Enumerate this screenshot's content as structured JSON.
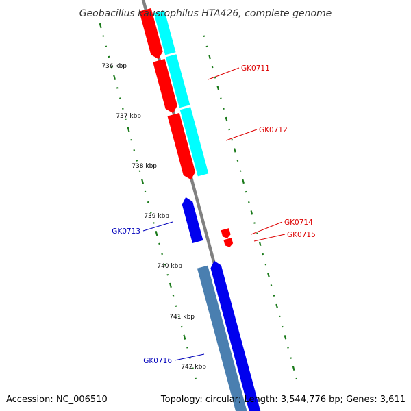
{
  "title": "Geobacillus kaustophilus HTA426, complete genome",
  "footer": {
    "accession": "Accession: NC_006510",
    "topology": "Topology: circular; Length: 3,544,776 bp; Genes: 3,611"
  },
  "colors": {
    "backbone": "#808080",
    "tick": "#1a7a1a",
    "forward_gene": "#ff0000",
    "reverse_gene": "#0000ee",
    "forward_cds": "#00ffff",
    "reverse_cds": "#4a7fb0",
    "forward_label": "#dd0000",
    "reverse_label": "#0000bb"
  },
  "ticks": [
    {
      "label": "736 kbp"
    },
    {
      "label": "737 kbp"
    },
    {
      "label": "738 kbp"
    },
    {
      "label": "739 kbp"
    },
    {
      "label": "740 kbp"
    },
    {
      "label": "741 kbp"
    },
    {
      "label": "742 kbp"
    }
  ],
  "genes": [
    {
      "label": "GK0711",
      "strand": "forward"
    },
    {
      "label": "GK0712",
      "strand": "forward"
    },
    {
      "label": "GK0713",
      "strand": "reverse"
    },
    {
      "label": "GK0714",
      "strand": "forward"
    },
    {
      "label": "GK0715",
      "strand": "forward"
    },
    {
      "label": "GK0716",
      "strand": "reverse"
    }
  ]
}
